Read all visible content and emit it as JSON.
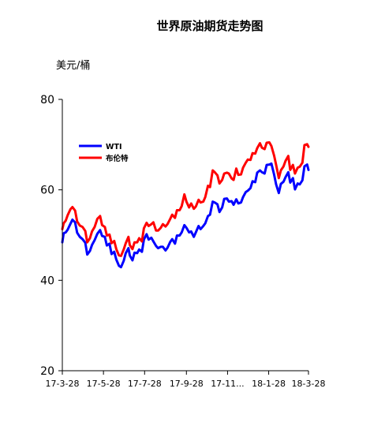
{
  "chart_data": {
    "type": "line",
    "title": "世界原油期货走势图",
    "ylabel": "美元/桶",
    "xlabel": "",
    "ylim": [
      20,
      80
    ],
    "yticks": [
      20,
      40,
      60,
      80
    ],
    "xlim": [
      "2017-03-28",
      "2018-03-28"
    ],
    "xtick_labels": [
      "17-3-28",
      "17-5-28",
      "17-7-28",
      "17-9-28",
      "17-11...",
      "18-1-28",
      "18-3-28"
    ],
    "xtick_dates": [
      "2017-03-28",
      "2017-05-28",
      "2017-07-28",
      "2017-09-28",
      "2017-11-28",
      "2018-01-28",
      "2018-03-28"
    ],
    "grid": false,
    "legend": "top-left",
    "series": [
      {
        "name": "WTI",
        "color": "#0000ff",
        "points": [
          [
            "2017-03-28",
            48.4
          ],
          [
            "2017-03-30",
            50.4
          ],
          [
            "2017-04-02",
            50.6
          ],
          [
            "2017-04-05",
            51.2
          ],
          [
            "2017-04-09",
            52.5
          ],
          [
            "2017-04-12",
            53.4
          ],
          [
            "2017-04-16",
            52.8
          ],
          [
            "2017-04-19",
            50.5
          ],
          [
            "2017-04-23",
            49.6
          ],
          [
            "2017-04-27",
            49.1
          ],
          [
            "2017-05-01",
            48.3
          ],
          [
            "2017-05-04",
            45.7
          ],
          [
            "2017-05-08",
            46.5
          ],
          [
            "2017-05-11",
            47.8
          ],
          [
            "2017-05-15",
            48.9
          ],
          [
            "2017-05-19",
            50.3
          ],
          [
            "2017-05-23",
            51.1
          ],
          [
            "2017-05-26",
            49.8
          ],
          [
            "2017-05-30",
            49.6
          ],
          [
            "2017-06-02",
            47.7
          ],
          [
            "2017-06-06",
            48.1
          ],
          [
            "2017-06-09",
            45.8
          ],
          [
            "2017-06-13",
            46.3
          ],
          [
            "2017-06-16",
            44.6
          ],
          [
            "2017-06-20",
            43.2
          ],
          [
            "2017-06-23",
            42.9
          ],
          [
            "2017-06-27",
            44.3
          ],
          [
            "2017-06-30",
            46.0
          ],
          [
            "2017-07-04",
            47.1
          ],
          [
            "2017-07-06",
            45.5
          ],
          [
            "2017-07-10",
            44.4
          ],
          [
            "2017-07-13",
            46.1
          ],
          [
            "2017-07-17",
            46.0
          ],
          [
            "2017-07-20",
            46.8
          ],
          [
            "2017-07-24",
            46.3
          ],
          [
            "2017-07-27",
            49.0
          ],
          [
            "2017-07-31",
            50.2
          ],
          [
            "2017-08-03",
            49.0
          ],
          [
            "2017-08-07",
            49.4
          ],
          [
            "2017-08-10",
            48.6
          ],
          [
            "2017-08-14",
            47.6
          ],
          [
            "2017-08-17",
            47.1
          ],
          [
            "2017-08-21",
            47.4
          ],
          [
            "2017-08-24",
            47.4
          ],
          [
            "2017-08-28",
            46.6
          ],
          [
            "2017-08-31",
            47.2
          ],
          [
            "2017-09-04",
            48.5
          ],
          [
            "2017-09-07",
            49.1
          ],
          [
            "2017-09-11",
            48.1
          ],
          [
            "2017-09-14",
            49.9
          ],
          [
            "2017-09-18",
            49.9
          ],
          [
            "2017-09-21",
            50.6
          ],
          [
            "2017-09-25",
            52.2
          ],
          [
            "2017-09-28",
            51.6
          ],
          [
            "2017-10-02",
            50.6
          ],
          [
            "2017-10-05",
            50.8
          ],
          [
            "2017-10-09",
            49.6
          ],
          [
            "2017-10-12",
            50.6
          ],
          [
            "2017-10-16",
            52.0
          ],
          [
            "2017-10-19",
            51.3
          ],
          [
            "2017-10-23",
            52.0
          ],
          [
            "2017-10-26",
            52.6
          ],
          [
            "2017-10-30",
            54.2
          ],
          [
            "2017-11-02",
            54.5
          ],
          [
            "2017-11-06",
            57.4
          ],
          [
            "2017-11-09",
            57.2
          ],
          [
            "2017-11-13",
            56.8
          ],
          [
            "2017-11-16",
            55.1
          ],
          [
            "2017-11-20",
            56.1
          ],
          [
            "2017-11-23",
            58.0
          ],
          [
            "2017-11-27",
            58.1
          ],
          [
            "2017-11-30",
            57.4
          ],
          [
            "2017-12-04",
            57.5
          ],
          [
            "2017-12-07",
            56.7
          ],
          [
            "2017-12-11",
            57.9
          ],
          [
            "2017-12-14",
            57.0
          ],
          [
            "2017-12-18",
            57.2
          ],
          [
            "2017-12-21",
            58.4
          ],
          [
            "2017-12-25",
            59.5
          ],
          [
            "2017-12-28",
            59.8
          ],
          [
            "2018-01-01",
            60.4
          ],
          [
            "2018-01-04",
            61.9
          ],
          [
            "2018-01-08",
            61.7
          ],
          [
            "2018-01-11",
            63.8
          ],
          [
            "2018-01-15",
            64.3
          ],
          [
            "2018-01-18",
            63.9
          ],
          [
            "2018-01-22",
            63.6
          ],
          [
            "2018-01-25",
            65.5
          ],
          [
            "2018-01-29",
            65.6
          ],
          [
            "2018-02-01",
            65.8
          ],
          [
            "2018-02-05",
            63.4
          ],
          [
            "2018-02-08",
            61.2
          ],
          [
            "2018-02-12",
            59.3
          ],
          [
            "2018-02-15",
            61.3
          ],
          [
            "2018-02-19",
            61.8
          ],
          [
            "2018-02-22",
            62.8
          ],
          [
            "2018-02-26",
            63.9
          ],
          [
            "2018-03-01",
            61.6
          ],
          [
            "2018-03-05",
            62.6
          ],
          [
            "2018-03-08",
            60.1
          ],
          [
            "2018-03-12",
            61.4
          ],
          [
            "2018-03-15",
            61.2
          ],
          [
            "2018-03-19",
            62.1
          ],
          [
            "2018-03-22",
            65.2
          ],
          [
            "2018-03-26",
            65.6
          ],
          [
            "2018-03-28",
            64.4
          ]
        ]
      },
      {
        "name": "布伦特",
        "color": "#ff0000",
        "points": [
          [
            "2017-03-28",
            51.3
          ],
          [
            "2017-03-30",
            52.6
          ],
          [
            "2017-04-02",
            53.2
          ],
          [
            "2017-04-05",
            54.4
          ],
          [
            "2017-04-09",
            55.7
          ],
          [
            "2017-04-12",
            56.2
          ],
          [
            "2017-04-16",
            55.4
          ],
          [
            "2017-04-19",
            53.0
          ],
          [
            "2017-04-23",
            52.1
          ],
          [
            "2017-04-27",
            51.8
          ],
          [
            "2017-05-01",
            50.9
          ],
          [
            "2017-05-04",
            48.4
          ],
          [
            "2017-05-08",
            49.3
          ],
          [
            "2017-05-11",
            50.8
          ],
          [
            "2017-05-15",
            51.8
          ],
          [
            "2017-05-19",
            53.6
          ],
          [
            "2017-05-23",
            54.2
          ],
          [
            "2017-05-26",
            52.2
          ],
          [
            "2017-05-30",
            51.8
          ],
          [
            "2017-06-02",
            49.9
          ],
          [
            "2017-06-06",
            50.1
          ],
          [
            "2017-06-09",
            48.2
          ],
          [
            "2017-06-13",
            48.7
          ],
          [
            "2017-06-16",
            46.9
          ],
          [
            "2017-06-20",
            45.5
          ],
          [
            "2017-06-23",
            45.4
          ],
          [
            "2017-06-27",
            46.8
          ],
          [
            "2017-06-30",
            48.2
          ],
          [
            "2017-07-04",
            49.6
          ],
          [
            "2017-07-06",
            47.8
          ],
          [
            "2017-07-10",
            46.9
          ],
          [
            "2017-07-13",
            48.4
          ],
          [
            "2017-07-17",
            48.4
          ],
          [
            "2017-07-20",
            49.3
          ],
          [
            "2017-07-24",
            48.6
          ],
          [
            "2017-07-27",
            51.5
          ],
          [
            "2017-07-31",
            52.7
          ],
          [
            "2017-08-03",
            52.0
          ],
          [
            "2017-08-07",
            52.4
          ],
          [
            "2017-08-10",
            52.8
          ],
          [
            "2017-08-14",
            51.0
          ],
          [
            "2017-08-17",
            51.0
          ],
          [
            "2017-08-21",
            51.6
          ],
          [
            "2017-08-24",
            52.4
          ],
          [
            "2017-08-28",
            51.9
          ],
          [
            "2017-08-31",
            52.4
          ],
          [
            "2017-09-04",
            53.6
          ],
          [
            "2017-09-07",
            54.5
          ],
          [
            "2017-09-11",
            53.8
          ],
          [
            "2017-09-14",
            55.5
          ],
          [
            "2017-09-18",
            55.5
          ],
          [
            "2017-09-21",
            56.4
          ],
          [
            "2017-09-25",
            59.0
          ],
          [
            "2017-09-28",
            57.4
          ],
          [
            "2017-10-02",
            56.1
          ],
          [
            "2017-10-05",
            57.0
          ],
          [
            "2017-10-09",
            55.8
          ],
          [
            "2017-10-12",
            56.3
          ],
          [
            "2017-10-16",
            57.8
          ],
          [
            "2017-10-19",
            57.2
          ],
          [
            "2017-10-23",
            57.4
          ],
          [
            "2017-10-26",
            58.4
          ],
          [
            "2017-10-30",
            60.9
          ],
          [
            "2017-11-02",
            60.6
          ],
          [
            "2017-11-06",
            64.3
          ],
          [
            "2017-11-09",
            63.9
          ],
          [
            "2017-11-13",
            63.2
          ],
          [
            "2017-11-16",
            61.4
          ],
          [
            "2017-11-20",
            62.2
          ],
          [
            "2017-11-23",
            63.6
          ],
          [
            "2017-11-27",
            63.8
          ],
          [
            "2017-11-30",
            63.6
          ],
          [
            "2017-12-04",
            62.5
          ],
          [
            "2017-12-07",
            62.2
          ],
          [
            "2017-12-11",
            64.7
          ],
          [
            "2017-12-14",
            63.3
          ],
          [
            "2017-12-18",
            63.4
          ],
          [
            "2017-12-21",
            64.9
          ],
          [
            "2017-12-25",
            66.0
          ],
          [
            "2017-12-28",
            66.7
          ],
          [
            "2018-01-01",
            66.6
          ],
          [
            "2018-01-04",
            68.1
          ],
          [
            "2018-01-08",
            68.0
          ],
          [
            "2018-01-11",
            69.2
          ],
          [
            "2018-01-15",
            70.3
          ],
          [
            "2018-01-18",
            69.3
          ],
          [
            "2018-01-22",
            69.0
          ],
          [
            "2018-01-25",
            70.4
          ],
          [
            "2018-01-29",
            70.5
          ],
          [
            "2018-02-01",
            69.7
          ],
          [
            "2018-02-05",
            67.6
          ],
          [
            "2018-02-08",
            65.5
          ],
          [
            "2018-02-12",
            62.6
          ],
          [
            "2018-02-15",
            64.3
          ],
          [
            "2018-02-19",
            65.2
          ],
          [
            "2018-02-22",
            66.4
          ],
          [
            "2018-02-26",
            67.5
          ],
          [
            "2018-03-01",
            64.4
          ],
          [
            "2018-03-05",
            65.5
          ],
          [
            "2018-03-08",
            63.6
          ],
          [
            "2018-03-12",
            64.9
          ],
          [
            "2018-03-15",
            65.1
          ],
          [
            "2018-03-19",
            66.0
          ],
          [
            "2018-03-22",
            69.9
          ],
          [
            "2018-03-26",
            70.1
          ],
          [
            "2018-03-28",
            69.5
          ]
        ]
      }
    ]
  }
}
